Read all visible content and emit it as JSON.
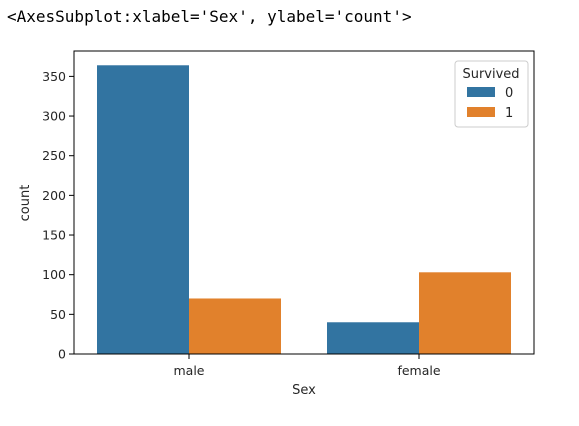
{
  "output": {
    "repr": "<AxesSubplot:xlabel='Sex', ylabel='count'>"
  },
  "chart_data": {
    "type": "bar",
    "categories": [
      "male",
      "female"
    ],
    "series": [
      {
        "name": "0",
        "values": [
          364,
          40
        ],
        "color": "#3274a1"
      },
      {
        "name": "1",
        "values": [
          70,
          103
        ],
        "color": "#e1812c"
      }
    ],
    "xlabel": "Sex",
    "ylabel": "count",
    "ylim": [
      0,
      382
    ],
    "yticks": [
      0,
      50,
      100,
      150,
      200,
      250,
      300,
      350
    ],
    "legend": {
      "title": "Survived",
      "placement": "top-right"
    },
    "grid": false
  }
}
